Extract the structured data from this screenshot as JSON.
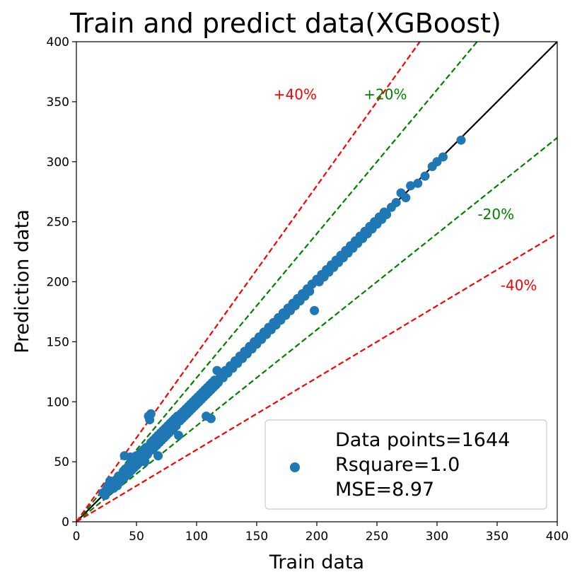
{
  "chart_data": {
    "type": "scatter",
    "title": "Train and predict data(XGBoost)",
    "xlabel": "Train data",
    "ylabel": "Prediction data",
    "xlim": [
      0,
      400
    ],
    "ylim": [
      0,
      400
    ],
    "xticks": [
      0,
      50,
      100,
      150,
      200,
      250,
      300,
      350,
      400
    ],
    "yticks": [
      0,
      50,
      100,
      150,
      200,
      250,
      300,
      350,
      400
    ],
    "grid": false,
    "point_color": "#1f77b4",
    "reference_lines": [
      {
        "slope": 1.0,
        "color": "#000000",
        "style": "solid"
      },
      {
        "slope": 1.2,
        "color": "#008000",
        "style": "dashed"
      },
      {
        "slope": 0.8,
        "color": "#008000",
        "style": "dashed"
      },
      {
        "slope": 1.4,
        "color": "#ff0000",
        "style": "dashed"
      },
      {
        "slope": 0.6,
        "color": "#ff0000",
        "style": "dashed"
      }
    ],
    "annotations": [
      {
        "text": "+40%",
        "x": 182,
        "y": 352,
        "color": "#ff0000"
      },
      {
        "text": "+20%",
        "x": 257,
        "y": 352,
        "color": "#008000"
      },
      {
        "text": "-20%",
        "x": 349,
        "y": 252,
        "color": "#008000"
      },
      {
        "text": "-40%",
        "x": 368,
        "y": 193,
        "color": "#ff0000"
      }
    ],
    "legend": {
      "position": "bottom-right",
      "lines": [
        "Data points=1644",
        "Rsquare=1.0",
        "MSE=8.97"
      ]
    },
    "points": [
      [
        22,
        24
      ],
      [
        24,
        22
      ],
      [
        25,
        27
      ],
      [
        26,
        30
      ],
      [
        28,
        27
      ],
      [
        28,
        34
      ],
      [
        30,
        31
      ],
      [
        31,
        28
      ],
      [
        33,
        35
      ],
      [
        34,
        30
      ],
      [
        35,
        38
      ],
      [
        36,
        33
      ],
      [
        38,
        36
      ],
      [
        39,
        42
      ],
      [
        40,
        37
      ],
      [
        40,
        55
      ],
      [
        41,
        44
      ],
      [
        42,
        39
      ],
      [
        43,
        46
      ],
      [
        44,
        41
      ],
      [
        45,
        54
      ],
      [
        45,
        48
      ],
      [
        46,
        43
      ],
      [
        47,
        50
      ],
      [
        48,
        45
      ],
      [
        49,
        52
      ],
      [
        50,
        47
      ],
      [
        50,
        55
      ],
      [
        51,
        48
      ],
      [
        52,
        56
      ],
      [
        53,
        50
      ],
      [
        54,
        58
      ],
      [
        55,
        52
      ],
      [
        56,
        60
      ],
      [
        57,
        54
      ],
      [
        57,
        50
      ],
      [
        58,
        62
      ],
      [
        59,
        56
      ],
      [
        60,
        58
      ],
      [
        60,
        88
      ],
      [
        61,
        85
      ],
      [
        62,
        90
      ],
      [
        62,
        66
      ],
      [
        63,
        60
      ],
      [
        64,
        68
      ],
      [
        65,
        62
      ],
      [
        66,
        70
      ],
      [
        67,
        64
      ],
      [
        68,
        72
      ],
      [
        68,
        55
      ],
      [
        69,
        66
      ],
      [
        70,
        74
      ],
      [
        71,
        68
      ],
      [
        72,
        76
      ],
      [
        73,
        70
      ],
      [
        74,
        78
      ],
      [
        75,
        72
      ],
      [
        76,
        80
      ],
      [
        77,
        74
      ],
      [
        78,
        82
      ],
      [
        79,
        76
      ],
      [
        80,
        84
      ],
      [
        81,
        78
      ],
      [
        82,
        86
      ],
      [
        83,
        80
      ],
      [
        84,
        88
      ],
      [
        85,
        72
      ],
      [
        86,
        84
      ],
      [
        87,
        90
      ],
      [
        88,
        86
      ],
      [
        89,
        92
      ],
      [
        90,
        88
      ],
      [
        91,
        94
      ],
      [
        92,
        90
      ],
      [
        93,
        96
      ],
      [
        94,
        92
      ],
      [
        95,
        98
      ],
      [
        96,
        94
      ],
      [
        97,
        100
      ],
      [
        98,
        96
      ],
      [
        99,
        102
      ],
      [
        100,
        98
      ],
      [
        101,
        104
      ],
      [
        102,
        100
      ],
      [
        103,
        106
      ],
      [
        104,
        102
      ],
      [
        105,
        108
      ],
      [
        106,
        104
      ],
      [
        107,
        110
      ],
      [
        108,
        106
      ],
      [
        109,
        112
      ],
      [
        110,
        108
      ],
      [
        111,
        114
      ],
      [
        112,
        110
      ],
      [
        113,
        116
      ],
      [
        114,
        112
      ],
      [
        115,
        118
      ],
      [
        116,
        114
      ],
      [
        117,
        126
      ],
      [
        118,
        116
      ],
      [
        108,
        88
      ],
      [
        112,
        86
      ],
      [
        120,
        122
      ],
      [
        122,
        120
      ],
      [
        124,
        126
      ],
      [
        126,
        124
      ],
      [
        128,
        130
      ],
      [
        130,
        128
      ],
      [
        132,
        134
      ],
      [
        134,
        132
      ],
      [
        136,
        138
      ],
      [
        138,
        136
      ],
      [
        140,
        142
      ],
      [
        142,
        140
      ],
      [
        144,
        146
      ],
      [
        146,
        144
      ],
      [
        148,
        150
      ],
      [
        150,
        148
      ],
      [
        152,
        154
      ],
      [
        154,
        152
      ],
      [
        156,
        158
      ],
      [
        158,
        156
      ],
      [
        160,
        162
      ],
      [
        162,
        160
      ],
      [
        164,
        166
      ],
      [
        166,
        164
      ],
      [
        168,
        170
      ],
      [
        170,
        168
      ],
      [
        172,
        174
      ],
      [
        174,
        172
      ],
      [
        176,
        178
      ],
      [
        178,
        176
      ],
      [
        180,
        182
      ],
      [
        182,
        180
      ],
      [
        184,
        186
      ],
      [
        186,
        184
      ],
      [
        188,
        190
      ],
      [
        190,
        188
      ],
      [
        192,
        194
      ],
      [
        194,
        192
      ],
      [
        196,
        198
      ],
      [
        198,
        176
      ],
      [
        200,
        202
      ],
      [
        202,
        200
      ],
      [
        204,
        206
      ],
      [
        206,
        204
      ],
      [
        208,
        210
      ],
      [
        210,
        208
      ],
      [
        212,
        214
      ],
      [
        214,
        212
      ],
      [
        216,
        218
      ],
      [
        218,
        216
      ],
      [
        220,
        222
      ],
      [
        222,
        220
      ],
      [
        224,
        226
      ],
      [
        226,
        224
      ],
      [
        228,
        230
      ],
      [
        230,
        228
      ],
      [
        232,
        234
      ],
      [
        234,
        232
      ],
      [
        236,
        238
      ],
      [
        238,
        236
      ],
      [
        240,
        242
      ],
      [
        242,
        240
      ],
      [
        244,
        246
      ],
      [
        246,
        244
      ],
      [
        248,
        250
      ],
      [
        250,
        248
      ],
      [
        252,
        254
      ],
      [
        254,
        252
      ],
      [
        256,
        258
      ],
      [
        258,
        256
      ],
      [
        262,
        262
      ],
      [
        266,
        266
      ],
      [
        270,
        274
      ],
      [
        274,
        270
      ],
      [
        278,
        280
      ],
      [
        284,
        282
      ],
      [
        290,
        288
      ],
      [
        296,
        296
      ],
      [
        300,
        300
      ],
      [
        305,
        304
      ],
      [
        320,
        318
      ]
    ]
  }
}
